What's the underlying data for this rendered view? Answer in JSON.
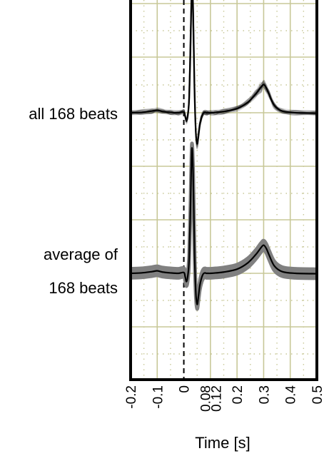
{
  "chart_data": {
    "type": "line",
    "xlabel": "Time [s]",
    "xlim": [
      -0.2,
      0.5
    ],
    "x_ticks": [
      {
        "value": -0.2,
        "label": "-0.2"
      },
      {
        "value": -0.1,
        "label": "-0.1"
      },
      {
        "value": 0,
        "label": "0"
      },
      {
        "value": 0.08,
        "label": "0.08"
      },
      {
        "value": 0.12,
        "label": "0.12"
      },
      {
        "value": 0.2,
        "label": "0.2"
      },
      {
        "value": 0.3,
        "label": "0.3"
      },
      {
        "value": 0.4,
        "label": "0.4"
      },
      {
        "value": 0.5,
        "label": "0.5"
      }
    ],
    "row_labels": [
      {
        "lines": [
          "all 168 beats"
        ]
      },
      {
        "lines": [
          "average of",
          "168 beats"
        ]
      }
    ],
    "beat_count": 168,
    "reference_line_x": 0,
    "grid": true,
    "colors": {
      "grid_major": "#c8c898",
      "grid_minor": "#c8c898",
      "trace": "#000000",
      "overlay": "#444444",
      "band": "#808080",
      "frame": "#000000"
    },
    "series": [
      {
        "name": "all 168 beats",
        "x": [
          -0.2,
          -0.16,
          -0.12,
          -0.1,
          -0.08,
          -0.05,
          -0.02,
          0,
          0.005,
          0.01,
          0.015,
          0.02,
          0.025,
          0.03,
          0.035,
          0.04,
          0.045,
          0.05,
          0.055,
          0.06,
          0.065,
          0.07,
          0.075,
          0.08,
          0.085,
          0.09,
          0.1,
          0.12,
          0.15,
          0.2,
          0.24,
          0.27,
          0.29,
          0.3,
          0.31,
          0.32,
          0.34,
          0.37,
          0.42,
          0.5
        ],
        "y": [
          0.0,
          0.01,
          0.04,
          0.06,
          0.03,
          0.01,
          0.0,
          0.02,
          -0.08,
          -0.2,
          -0.06,
          0.35,
          1.6,
          3.0,
          2.4,
          0.6,
          -0.45,
          -0.75,
          -0.55,
          -0.3,
          -0.15,
          -0.05,
          0.0,
          0.01,
          0.0,
          0.0,
          0.0,
          0.01,
          0.03,
          0.1,
          0.25,
          0.45,
          0.62,
          0.68,
          0.6,
          0.45,
          0.18,
          0.04,
          0.0,
          -0.01
        ]
      },
      {
        "name": "average of 168 beats",
        "x": [
          -0.2,
          -0.16,
          -0.12,
          -0.1,
          -0.08,
          -0.05,
          -0.02,
          0,
          0.005,
          0.01,
          0.015,
          0.02,
          0.025,
          0.03,
          0.035,
          0.04,
          0.045,
          0.05,
          0.055,
          0.06,
          0.065,
          0.07,
          0.075,
          0.08,
          0.085,
          0.09,
          0.1,
          0.12,
          0.15,
          0.2,
          0.24,
          0.27,
          0.29,
          0.3,
          0.31,
          0.32,
          0.34,
          0.37,
          0.42,
          0.5
        ],
        "y": [
          0.0,
          0.01,
          0.04,
          0.06,
          0.03,
          0.01,
          0.0,
          0.02,
          -0.08,
          -0.2,
          -0.06,
          0.35,
          1.6,
          3.0,
          2.4,
          0.6,
          -0.45,
          -0.75,
          -0.55,
          -0.3,
          -0.15,
          -0.05,
          0.0,
          0.01,
          0.0,
          0.0,
          0.0,
          0.01,
          0.03,
          0.1,
          0.25,
          0.45,
          0.62,
          0.68,
          0.6,
          0.45,
          0.18,
          0.04,
          0.0,
          -0.01
        ]
      }
    ]
  }
}
